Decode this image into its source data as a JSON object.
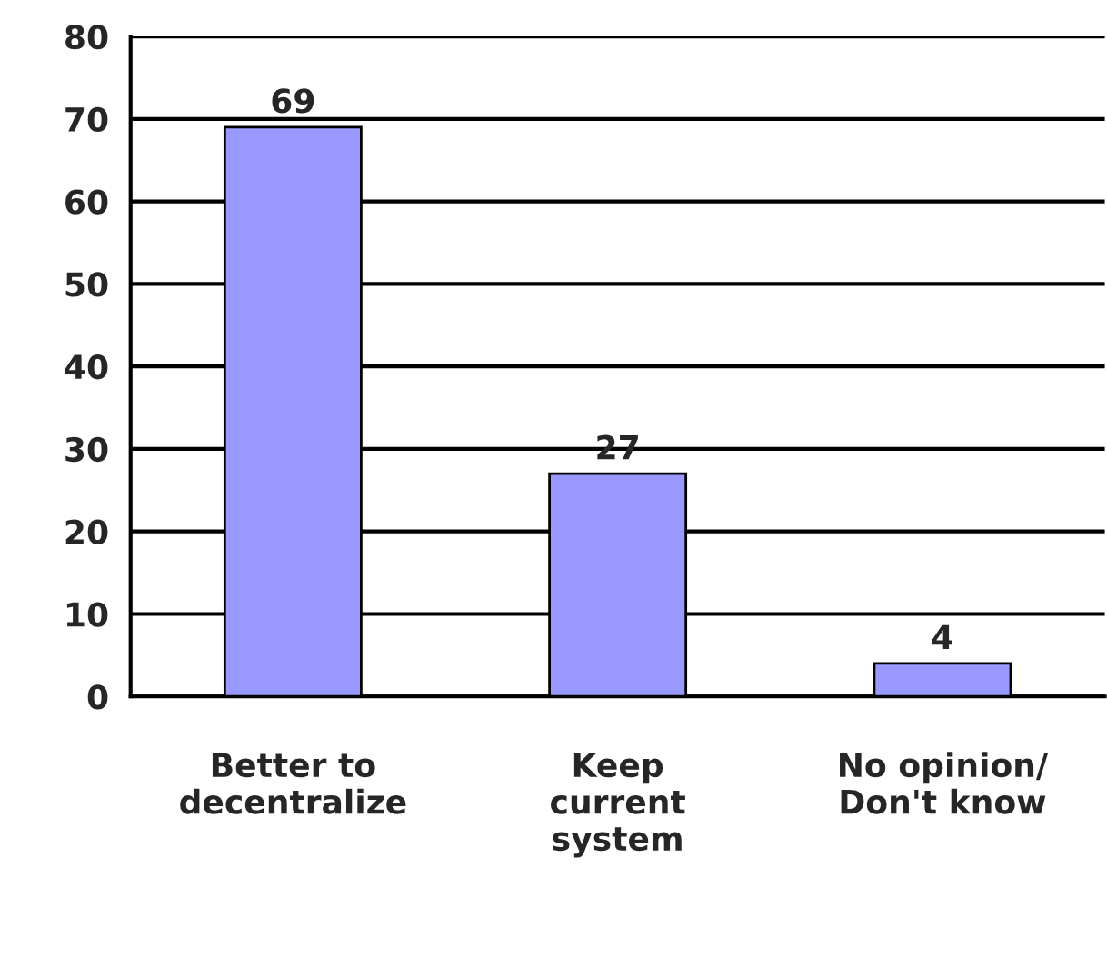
{
  "chart_data": {
    "type": "bar",
    "categories": [
      "Better to\ndecentralize",
      "Keep\ncurrent\nsystem",
      "No opinion/\nDon't know"
    ],
    "values": [
      69,
      27,
      4
    ],
    "color": "#9999ff",
    "ylim": [
      0,
      80
    ],
    "yticks": [
      0,
      10,
      20,
      30,
      40,
      50,
      60,
      70,
      80
    ],
    "grid": "y",
    "data_labels": true
  }
}
